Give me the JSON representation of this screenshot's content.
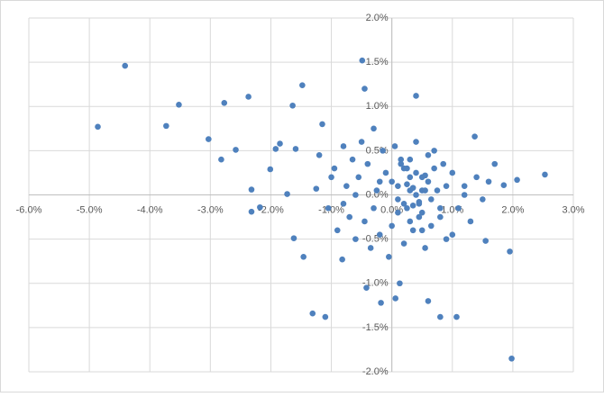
{
  "chart_data": {
    "type": "scatter",
    "color": "#4f81bd",
    "grid": true,
    "xlim": [
      -6,
      3
    ],
    "ylim": [
      -2,
      2
    ],
    "xticks": [
      {
        "value": -6,
        "label": "-6.0%"
      },
      {
        "value": -5,
        "label": "-5.0%"
      },
      {
        "value": -4,
        "label": "-4.0%"
      },
      {
        "value": -3,
        "label": "-3.0%"
      },
      {
        "value": -2,
        "label": "-2.0%"
      },
      {
        "value": -1,
        "label": "-1.0%"
      },
      {
        "value": 0,
        "label": "0.0%"
      },
      {
        "value": 1,
        "label": "1.0%"
      },
      {
        "value": 2,
        "label": "2.0%"
      },
      {
        "value": 3,
        "label": "3.0%"
      }
    ],
    "yticks": [
      {
        "value": -2,
        "label": "-2.0%"
      },
      {
        "value": -1.5,
        "label": "-1.5%"
      },
      {
        "value": -1,
        "label": "-1.0%"
      },
      {
        "value": -0.5,
        "label": "-0.5%"
      },
      {
        "value": 0,
        "label": "0.0%"
      },
      {
        "value": 0.5,
        "label": "0.5%"
      },
      {
        "value": 1,
        "label": "1.0%"
      },
      {
        "value": 1.5,
        "label": "1.5%"
      },
      {
        "value": 2,
        "label": "2.0%"
      }
    ],
    "x": [
      -4.86,
      -4.41,
      -3.73,
      -3.52,
      -3.03,
      -2.82,
      -2.77,
      -2.58,
      -2.37,
      -2.32,
      -2.32,
      -2.18,
      -2.01,
      -1.92,
      -1.85,
      -1.73,
      -1.64,
      -1.59,
      -1.62,
      -1.48,
      -1.46,
      -1.31,
      -1.1,
      -1.15,
      -1.25,
      -0.82,
      -0.49,
      -0.45,
      -0.42,
      -0.18,
      0.06,
      0.13,
      0.4,
      0.6,
      0.8,
      1.07,
      1.37,
      1.7,
      2.07,
      2.53,
      1.95,
      1.98,
      1.55,
      1.85,
      -1.2,
      -1.05,
      -0.95,
      -0.9,
      -0.8,
      -0.75,
      -0.7,
      -0.65,
      -0.6,
      -0.55,
      -0.5,
      -0.45,
      -0.4,
      -0.35,
      -0.3,
      -0.25,
      -0.2,
      -0.15,
      -0.1,
      -0.05,
      0.0,
      0.05,
      0.1,
      0.15,
      0.2,
      0.25,
      0.3,
      0.35,
      0.4,
      0.45,
      0.5,
      0.55,
      0.6,
      0.65,
      0.7,
      0.75,
      0.8,
      0.85,
      0.9,
      1.0,
      1.1,
      1.2,
      1.3,
      1.4,
      1.5,
      1.6,
      0.1,
      0.2,
      0.3,
      0.4,
      0.5,
      0.6,
      0.2,
      0.3,
      0.4,
      0.5,
      0.1,
      0.25,
      0.35,
      0.45,
      0.55,
      0.15,
      0.3,
      0.5,
      0.65,
      0.0,
      -0.2,
      0.7,
      0.8,
      -0.3,
      0.9,
      -0.6,
      1.0,
      -0.8,
      1.2,
      -1.0,
      0.35,
      0.45,
      0.25,
      0.55
    ],
    "values": [
      0.77,
      1.46,
      0.78,
      1.02,
      0.63,
      0.4,
      1.04,
      0.51,
      1.11,
      0.06,
      -0.19,
      -0.14,
      0.29,
      0.52,
      0.58,
      0.01,
      1.01,
      0.52,
      -0.49,
      1.24,
      -0.7,
      -1.34,
      -1.38,
      0.8,
      0.07,
      -0.73,
      1.52,
      1.2,
      -1.05,
      -1.22,
      -1.17,
      -1.0,
      1.12,
      -1.2,
      -1.38,
      -1.38,
      0.66,
      0.35,
      0.17,
      0.23,
      -0.64,
      -1.85,
      -0.52,
      0.11,
      0.45,
      -0.15,
      0.3,
      -0.4,
      0.55,
      0.1,
      -0.25,
      0.4,
      -0.5,
      0.2,
      0.6,
      -0.3,
      0.35,
      -0.6,
      0.75,
      0.05,
      -0.45,
      0.5,
      0.25,
      -0.7,
      0.15,
      0.55,
      -0.2,
      0.4,
      -0.55,
      0.3,
      0.05,
      -0.4,
      0.6,
      -0.1,
      0.2,
      -0.6,
      0.45,
      -0.35,
      0.5,
      0.05,
      -0.25,
      0.35,
      -0.5,
      0.25,
      -0.15,
      0.1,
      -0.3,
      0.2,
      -0.05,
      0.15,
      0.1,
      -0.1,
      0.2,
      0.0,
      -0.2,
      0.15,
      0.3,
      -0.3,
      0.25,
      0.05,
      -0.05,
      0.12,
      -0.12,
      -0.25,
      0.22,
      0.35,
      0.4,
      -0.4,
      -0.05,
      -0.35,
      0.15,
      0.3,
      -0.15,
      -0.15,
      0.1,
      0.0,
      -0.45,
      -0.1,
      0.0,
      0.2,
      0.08,
      -0.08,
      -0.15,
      0.05
    ]
  }
}
